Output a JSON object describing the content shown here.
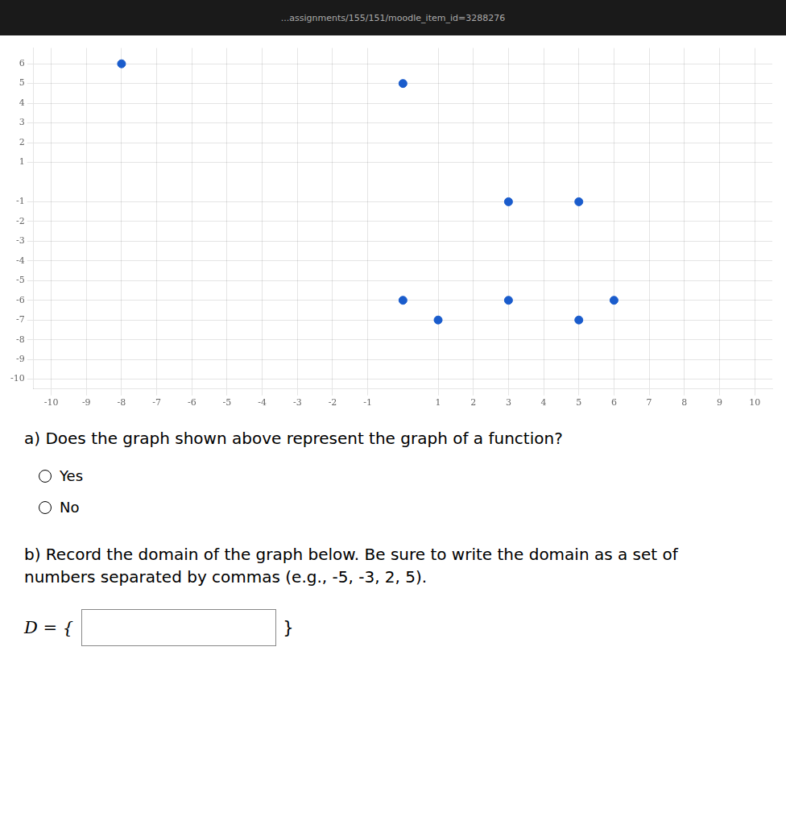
{
  "chart_data": {
    "type": "scatter",
    "x": [
      -8,
      0,
      3,
      5,
      0,
      3,
      6,
      1,
      5
    ],
    "values": [
      6,
      5,
      -1,
      -1,
      -6,
      -6,
      -6,
      -7,
      -7
    ],
    "color": "#1a5ccc",
    "xlim": [
      -10.5,
      10.5
    ],
    "ylim": [
      -10.5,
      6.8
    ],
    "xticks": [
      -10,
      -9,
      -8,
      -7,
      -6,
      -5,
      -4,
      -3,
      -2,
      -1,
      1,
      2,
      3,
      4,
      5,
      6,
      7,
      8,
      9,
      10
    ],
    "yticks": [
      -10,
      -9,
      -8,
      -7,
      -6,
      -5,
      -4,
      -3,
      -2,
      -1,
      1,
      2,
      3,
      4,
      5,
      6
    ],
    "grid": true,
    "annotations": [
      "...assignments/155/151/moodle_item_id=3288276",
      "a) Does the graph shown above represent the graph of a function?",
      "Yes",
      "No",
      "b) Record the domain of the graph below. Be sure to write the domain as a set of\nnumbers separated by commas (e.g., -5, -3, 2, 5).",
      "D = {",
      "}"
    ]
  }
}
